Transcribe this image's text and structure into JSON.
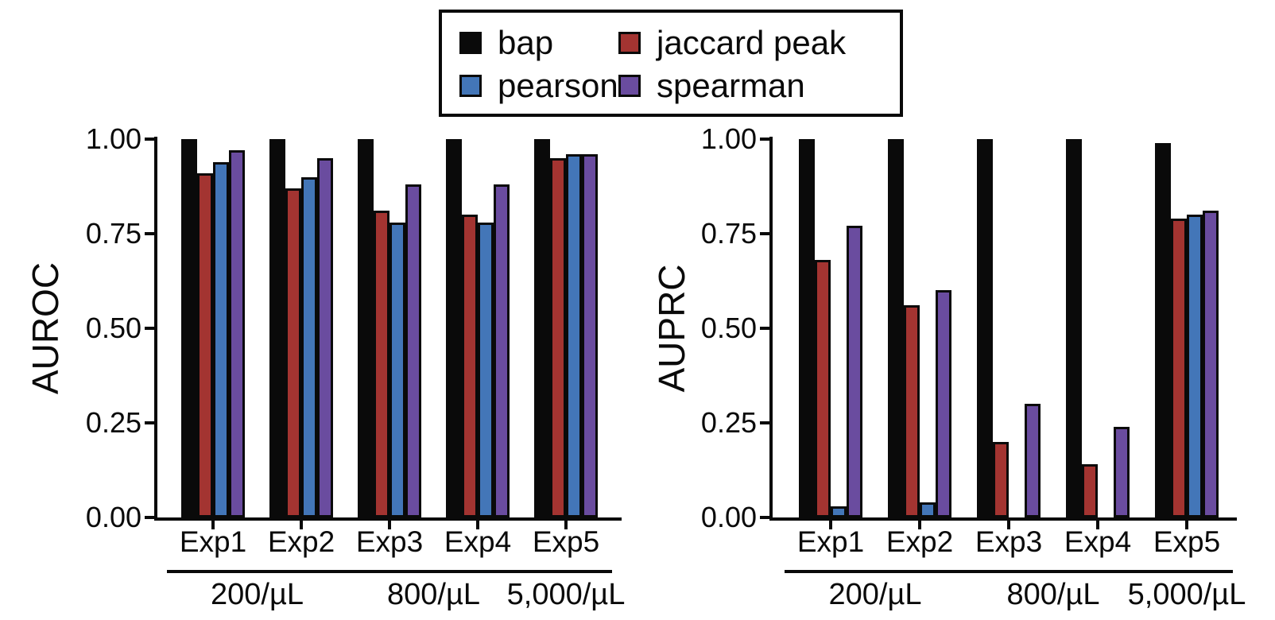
{
  "figure": {
    "background": "#ffffff",
    "axis_color": "#0a0a0a"
  },
  "legend": {
    "position": "top-center",
    "items": [
      {
        "label": "bap",
        "color": "#0a0a0a"
      },
      {
        "label": "jaccard peak",
        "color": "#a33431"
      },
      {
        "label": "pearson",
        "color": "#4376b8"
      },
      {
        "label": "spearman",
        "color": "#6a4c9f"
      }
    ]
  },
  "chart_data": [
    {
      "type": "bar",
      "title": "",
      "ylabel": "AUROC",
      "xlabel": "",
      "ylim": [
        0,
        1
      ],
      "yticks": [
        1.0,
        0.75,
        0.5,
        0.25,
        0.0
      ],
      "grid": false,
      "legend_position": "top",
      "categories": [
        "Exp1",
        "Exp2",
        "Exp3",
        "Exp4",
        "Exp5"
      ],
      "series": [
        {
          "name": "bap",
          "values": [
            1.0,
            1.0,
            1.0,
            1.0,
            1.0
          ]
        },
        {
          "name": "jaccard peak",
          "values": [
            0.91,
            0.87,
            0.81,
            0.8,
            0.95
          ]
        },
        {
          "name": "pearson",
          "values": [
            0.94,
            0.9,
            0.78,
            0.78,
            0.96
          ]
        },
        {
          "name": "spearman",
          "values": [
            0.97,
            0.95,
            0.88,
            0.88,
            0.96
          ]
        }
      ],
      "group_labels": [
        {
          "label": "200/µL",
          "from": 0,
          "to": 1
        },
        {
          "label": "800/µL",
          "from": 2,
          "to": 3
        },
        {
          "label": "5,000/µL",
          "from": 4,
          "to": 4
        }
      ]
    },
    {
      "type": "bar",
      "title": "",
      "ylabel": "AUPRC",
      "xlabel": "",
      "ylim": [
        0,
        1
      ],
      "yticks": [
        1.0,
        0.75,
        0.5,
        0.25,
        0.0
      ],
      "grid": false,
      "legend_position": "top",
      "categories": [
        "Exp1",
        "Exp2",
        "Exp3",
        "Exp4",
        "Exp5"
      ],
      "series": [
        {
          "name": "bap",
          "values": [
            1.0,
            1.0,
            1.0,
            1.0,
            0.99
          ]
        },
        {
          "name": "jaccard peak",
          "values": [
            0.68,
            0.56,
            0.2,
            0.14,
            0.79
          ]
        },
        {
          "name": "pearson",
          "values": [
            0.03,
            0.04,
            0.0,
            0.0,
            0.8
          ]
        },
        {
          "name": "spearman",
          "values": [
            0.77,
            0.6,
            0.3,
            0.24,
            0.81
          ]
        }
      ],
      "group_labels": [
        {
          "label": "200/µL",
          "from": 0,
          "to": 1
        },
        {
          "label": "800/µL",
          "from": 2,
          "to": 3
        },
        {
          "label": "5,000/µL",
          "from": 4,
          "to": 4
        }
      ]
    }
  ]
}
